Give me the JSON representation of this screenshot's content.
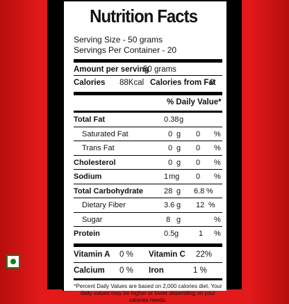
{
  "title": "Nutrition Facts",
  "serving_size": "Serving Size - 50 grams",
  "servings_per_container": "Servings Per Container - 20",
  "amount_per_serving_label": "Amount per serving",
  "amount_per_serving_value": "50 grams",
  "calories_label": "Calories",
  "calories_value": "88Kcal",
  "calories_fat_label": "Calories from Fat",
  "calories_fat_value": "0",
  "daily_value_header": "% Daily Value*",
  "nutrients": [
    {
      "label": "Total Fat",
      "value": "0.38",
      "unit": "g",
      "pct": "",
      "pct_sign": ""
    },
    {
      "label": "Saturated Fat",
      "value": "0",
      "unit": "g",
      "pct": "0",
      "pct_sign": "%"
    },
    {
      "label": "Trans Fat",
      "value": "0",
      "unit": "g",
      "pct": "0",
      "pct_sign": "%"
    },
    {
      "label": "Cholesterol",
      "value": "0",
      "unit": "g",
      "pct": "0",
      "pct_sign": "%"
    },
    {
      "label": "Sodium",
      "value": "1",
      "unit": "mg",
      "pct": "0",
      "pct_sign": "%"
    },
    {
      "label": "Total Carbohydrate",
      "value": "28",
      "unit": "g",
      "pct": "6.8",
      "pct_sign": "%"
    },
    {
      "label": "Dietary Fiber",
      "value": "3.6",
      "unit": "g",
      "pct": "12",
      "pct_sign": "%"
    },
    {
      "label": "Sugar",
      "value": "8",
      "unit": "g",
      "pct": "",
      "pct_sign": "%"
    },
    {
      "label": "Protein",
      "value": "0.5",
      "unit": "g",
      "pct": "1",
      "pct_sign": "%"
    }
  ],
  "vitamins": [
    {
      "label": "Vitamin A",
      "value": "0 %",
      "label2": "Vitamin C",
      "value2": "22%"
    },
    {
      "label": "Calcium",
      "value": "0 %",
      "label2": "Iron",
      "value2": "1 %"
    }
  ],
  "footnote": "*Percent Daily Values are based on 2,000 calories diet. Your daily values may be higher or lower depending on your calories needs."
}
